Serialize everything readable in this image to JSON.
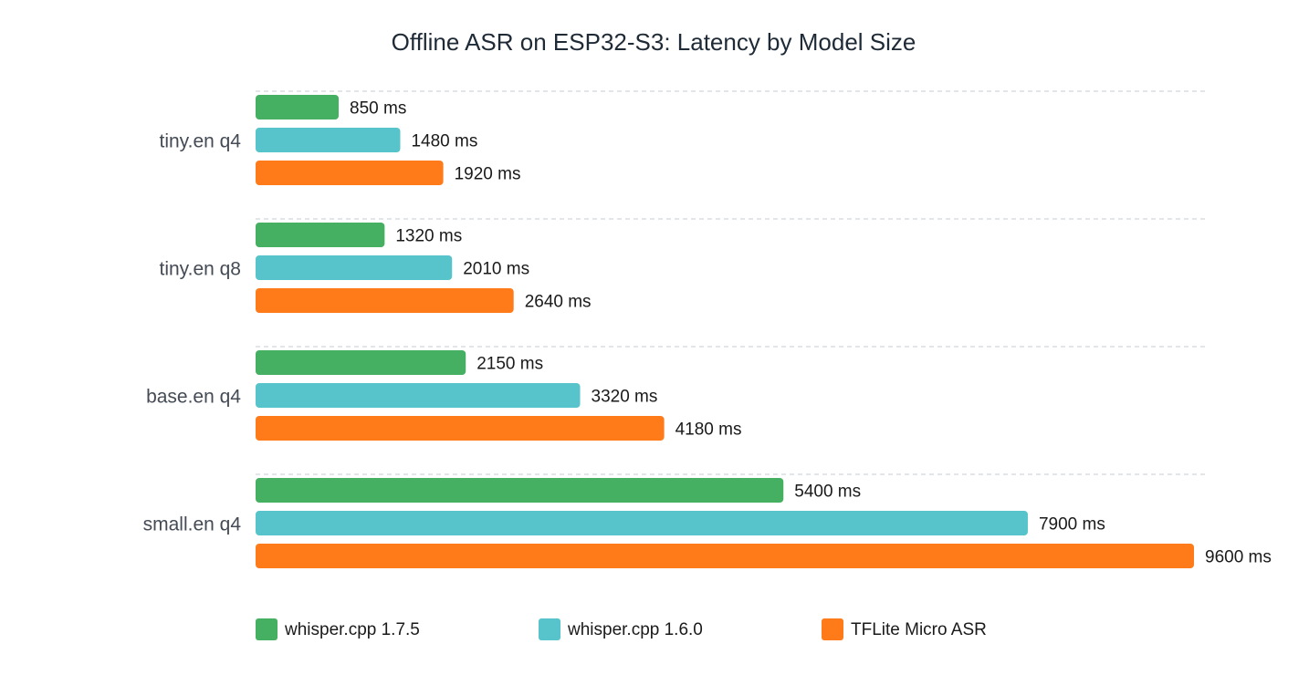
{
  "chart_data": {
    "type": "bar",
    "orientation": "horizontal",
    "title": "Offline ASR on ESP32-S3: Latency by Model Size",
    "xlabel": "",
    "ylabel": "",
    "unit": "ms",
    "categories": [
      "tiny.en q4",
      "tiny.en q8",
      "base.en q4",
      "small.en q4"
    ],
    "series": [
      {
        "name": "whisper.cpp 1.7.5",
        "color": "#45b061",
        "values": [
          850,
          1320,
          2150,
          5400
        ]
      },
      {
        "name": "whisper.cpp 1.6.0",
        "color": "#56c4ca",
        "values": [
          1480,
          2010,
          3320,
          7900
        ]
      },
      {
        "name": "TFLite Micro ASR",
        "color": "#ff7b1a",
        "values": [
          1920,
          2640,
          4180,
          9600
        ]
      }
    ],
    "xlim": [
      0,
      9600
    ],
    "grid": "dashed horizontal separators",
    "legend_position": "bottom"
  }
}
